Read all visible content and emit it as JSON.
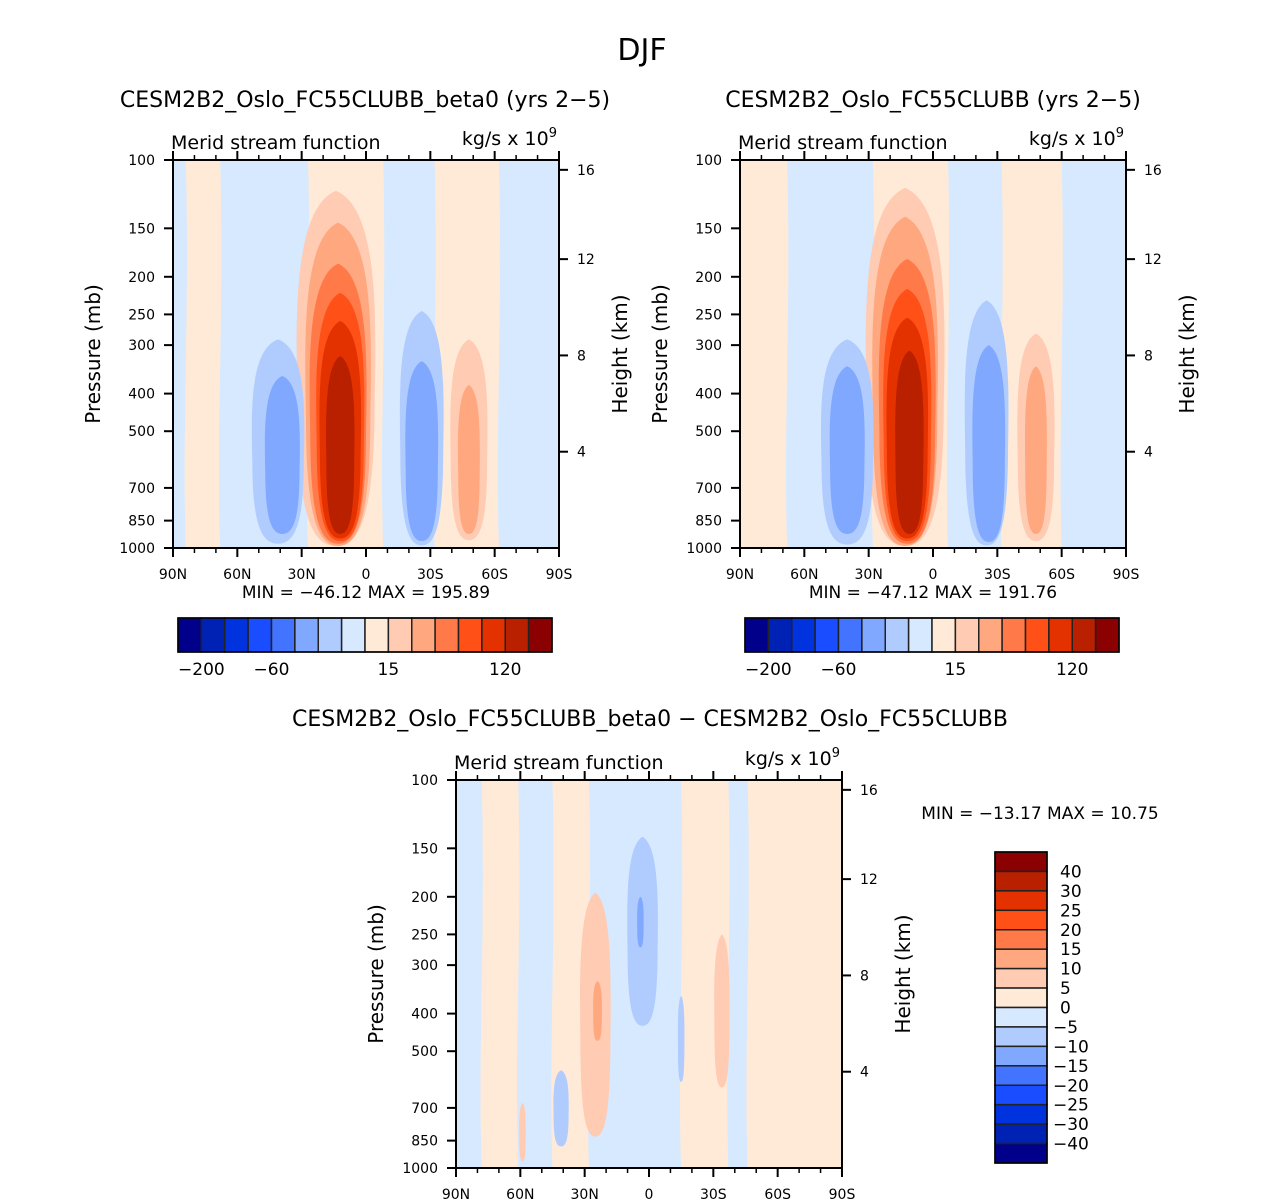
{
  "chart_data": {
    "type": "heatmap",
    "suptitle": "DJF",
    "panels": [
      {
        "id": "beta0",
        "title": "CESM2B2_Oslo_FC55CLUBB_beta0 (yrs 2-5)",
        "left_label": "Merid stream function",
        "right_label": "kg/s x 10",
        "right_label_exp": "9",
        "ylabel": "Pressure (mb)",
        "ylabel_right": "Height (km)",
        "x_ticks": [
          "90N",
          "60N",
          "30N",
          "0",
          "30S",
          "60S",
          "90S"
        ],
        "x_range": [
          90,
          -90
        ],
        "y_ticks": [
          100,
          150,
          200,
          250,
          300,
          400,
          500,
          700,
          850,
          1000
        ],
        "y_range": [
          1000,
          100
        ],
        "height_ticks": [
          4,
          8,
          12,
          16
        ],
        "min_label": "MIN = -46.12",
        "max_label": "MAX = 195.89",
        "min": -46.12,
        "max": 195.89,
        "colorbar": {
          "orientation": "horizontal",
          "tick_labels": [
            "-200",
            "-60",
            "15",
            "120"
          ],
          "levels": [
            -200,
            -150,
            -100,
            -80,
            -60,
            -40,
            -20,
            -5,
            5,
            15,
            40,
            60,
            80,
            100,
            120,
            150
          ]
        },
        "background": [
          {
            "lat_from": 90,
            "lat_to": 84,
            "level": 7
          },
          {
            "lat_from": 84,
            "lat_to": 68,
            "level": 8
          },
          {
            "lat_from": 68,
            "lat_to": 27,
            "level": 7
          },
          {
            "lat_from": 27,
            "lat_to": -8,
            "level": 8
          },
          {
            "lat_from": -8,
            "lat_to": -32,
            "level": 7
          },
          {
            "lat_from": -32,
            "lat_to": -62,
            "level": 8
          },
          {
            "lat_from": -62,
            "lat_to": -90,
            "level": 7
          }
        ],
        "cells": [
          {
            "lat": 14,
            "half_width": 18,
            "p_top": 120,
            "p_bot": 1000,
            "level": 9
          },
          {
            "lat": 13,
            "half_width": 15,
            "p_top": 145,
            "p_bot": 990,
            "level": 10
          },
          {
            "lat": 13,
            "half_width": 13,
            "p_top": 185,
            "p_bot": 975,
            "level": 11
          },
          {
            "lat": 12,
            "half_width": 11,
            "p_top": 220,
            "p_bot": 960,
            "level": 12
          },
          {
            "lat": 12,
            "half_width": 9.5,
            "p_top": 260,
            "p_bot": 945,
            "level": 13
          },
          {
            "lat": 12,
            "half_width": 6.5,
            "p_top": 320,
            "p_bot": 920,
            "level": 14
          },
          {
            "lat": 41,
            "half_width": 12,
            "p_top": 290,
            "p_bot": 975,
            "level": 6
          },
          {
            "lat": 39,
            "half_width": 8,
            "p_top": 360,
            "p_bot": 920,
            "level": 5
          },
          {
            "lat": -26,
            "half_width": 10,
            "p_top": 245,
            "p_bot": 985,
            "level": 6
          },
          {
            "lat": -26,
            "half_width": 7.5,
            "p_top": 330,
            "p_bot": 960,
            "level": 5
          },
          {
            "lat": -48,
            "half_width": 8.5,
            "p_top": 290,
            "p_bot": 955,
            "level": 9
          },
          {
            "lat": -48,
            "half_width": 5,
            "p_top": 380,
            "p_bot": 920,
            "level": 10
          }
        ]
      },
      {
        "id": "ctrl",
        "title": "CESM2B2_Oslo_FC55CLUBB (yrs 2-5)",
        "left_label": "Merid stream function",
        "right_label": "kg/s x 10",
        "right_label_exp": "9",
        "ylabel": "Pressure (mb)",
        "ylabel_right": "Height (km)",
        "x_ticks": [
          "90N",
          "60N",
          "30N",
          "0",
          "30S",
          "60S",
          "90S"
        ],
        "x_range": [
          90,
          -90
        ],
        "y_ticks": [
          100,
          150,
          200,
          250,
          300,
          400,
          500,
          700,
          850,
          1000
        ],
        "y_range": [
          1000,
          100
        ],
        "height_ticks": [
          4,
          8,
          12,
          16
        ],
        "min_label": "MIN = -47.12",
        "max_label": "MAX = 191.76",
        "min": -47.12,
        "max": 191.76,
        "colorbar": {
          "orientation": "horizontal",
          "tick_labels": [
            "-200",
            "-60",
            "15",
            "120"
          ],
          "levels": [
            -200,
            -150,
            -100,
            -80,
            -60,
            -40,
            -20,
            -5,
            5,
            15,
            40,
            60,
            80,
            100,
            120,
            150
          ]
        },
        "background": [
          {
            "lat_from": 90,
            "lat_to": 68,
            "level": 8
          },
          {
            "lat_from": 68,
            "lat_to": 28,
            "level": 7
          },
          {
            "lat_from": 28,
            "lat_to": -7,
            "level": 8
          },
          {
            "lat_from": -7,
            "lat_to": -32,
            "level": 7
          },
          {
            "lat_from": -32,
            "lat_to": -60,
            "level": 8
          },
          {
            "lat_from": -60,
            "lat_to": -90,
            "level": 7
          }
        ],
        "cells": [
          {
            "lat": 13,
            "half_width": 18,
            "p_top": 118,
            "p_bot": 1000,
            "level": 9
          },
          {
            "lat": 13,
            "half_width": 15,
            "p_top": 140,
            "p_bot": 990,
            "level": 10
          },
          {
            "lat": 12,
            "half_width": 13,
            "p_top": 180,
            "p_bot": 975,
            "level": 11
          },
          {
            "lat": 12,
            "half_width": 11,
            "p_top": 215,
            "p_bot": 960,
            "level": 12
          },
          {
            "lat": 12,
            "half_width": 9.5,
            "p_top": 255,
            "p_bot": 945,
            "level": 13
          },
          {
            "lat": 11,
            "half_width": 6.5,
            "p_top": 310,
            "p_bot": 920,
            "level": 14
          },
          {
            "lat": 40,
            "half_width": 12,
            "p_top": 290,
            "p_bot": 980,
            "level": 6
          },
          {
            "lat": 40,
            "half_width": 8,
            "p_top": 340,
            "p_bot": 920,
            "level": 5
          },
          {
            "lat": -25,
            "half_width": 10,
            "p_top": 230,
            "p_bot": 985,
            "level": 6
          },
          {
            "lat": -26,
            "half_width": 7.5,
            "p_top": 300,
            "p_bot": 965,
            "level": 5
          },
          {
            "lat": -48,
            "half_width": 8.5,
            "p_top": 280,
            "p_bot": 960,
            "level": 9
          },
          {
            "lat": -48,
            "half_width": 5,
            "p_top": 340,
            "p_bot": 920,
            "level": 10
          }
        ]
      },
      {
        "id": "diff",
        "title": "CESM2B2_Oslo_FC55CLUBB_beta0 - CESM2B2_Oslo_FC55CLUBB",
        "left_label": "Merid stream function",
        "right_label": "kg/s x 10",
        "right_label_exp": "9",
        "ylabel": "Pressure (mb)",
        "ylabel_right": "Height (km)",
        "x_ticks": [
          "90N",
          "60N",
          "30N",
          "0",
          "30S",
          "60S",
          "90S"
        ],
        "x_range": [
          90,
          -90
        ],
        "y_ticks": [
          100,
          150,
          200,
          250,
          300,
          400,
          500,
          700,
          850,
          1000
        ],
        "y_range": [
          1000,
          100
        ],
        "height_ticks": [
          4,
          8,
          12,
          16
        ],
        "min_label": "MIN = -13.17",
        "max_label": "MAX =  10.75",
        "min": -13.17,
        "max": 10.75,
        "colorbar": {
          "orientation": "vertical",
          "tick_labels": [
            "40",
            "30",
            "25",
            "20",
            "15",
            "10",
            "5",
            "0",
            "-5",
            "-10",
            "-15",
            "-20",
            "-25",
            "-30",
            "-40"
          ],
          "levels": [
            -40,
            -30,
            -25,
            -20,
            -15,
            -10,
            -5,
            0,
            5,
            10,
            15,
            20,
            25,
            30,
            40
          ]
        },
        "background": [
          {
            "lat_from": 90,
            "lat_to": 78,
            "level": 7
          },
          {
            "lat_from": 78,
            "lat_to": 61,
            "level": 8
          },
          {
            "lat_from": 61,
            "lat_to": 45,
            "level": 7
          },
          {
            "lat_from": 45,
            "lat_to": 28,
            "level": 8
          },
          {
            "lat_from": 28,
            "lat_to": -15,
            "level": 7
          },
          {
            "lat_from": -15,
            "lat_to": -37,
            "level": 8
          },
          {
            "lat_from": -37,
            "lat_to": -46,
            "level": 7
          },
          {
            "lat_from": -46,
            "lat_to": -90,
            "level": 8
          }
        ],
        "cells": [
          {
            "lat": 25,
            "half_width": 7,
            "p_top": 195,
            "p_bot": 830,
            "level": 9
          },
          {
            "lat": 24,
            "half_width": 2,
            "p_top": 330,
            "p_bot": 470,
            "level": 10
          },
          {
            "lat": 3,
            "half_width": 7,
            "p_top": 140,
            "p_bot": 430,
            "level": 6
          },
          {
            "lat": 4,
            "half_width": 1.5,
            "p_top": 200,
            "p_bot": 270,
            "level": 5
          },
          {
            "lat": -34,
            "half_width": 3.5,
            "p_top": 250,
            "p_bot": 620,
            "level": 9
          },
          {
            "lat": -15,
            "half_width": 1.5,
            "p_top": 360,
            "p_bot": 600,
            "level": 6
          },
          {
            "lat": 41,
            "half_width": 3.5,
            "p_top": 560,
            "p_bot": 880,
            "level": 6
          },
          {
            "lat": 59,
            "half_width": 1.5,
            "p_top": 680,
            "p_bot": 960,
            "level": 9
          }
        ]
      }
    ],
    "palette": [
      "#00008b",
      "#0022b4",
      "#0033de",
      "#1a4dff",
      "#4274ff",
      "#80a8ff",
      "#b0ccff",
      "#d6e9ff",
      "#ffead8",
      "#ffcbb2",
      "#ffa77e",
      "#ff7a48",
      "#ff5018",
      "#e33200",
      "#b82000",
      "#8b0000"
    ]
  }
}
